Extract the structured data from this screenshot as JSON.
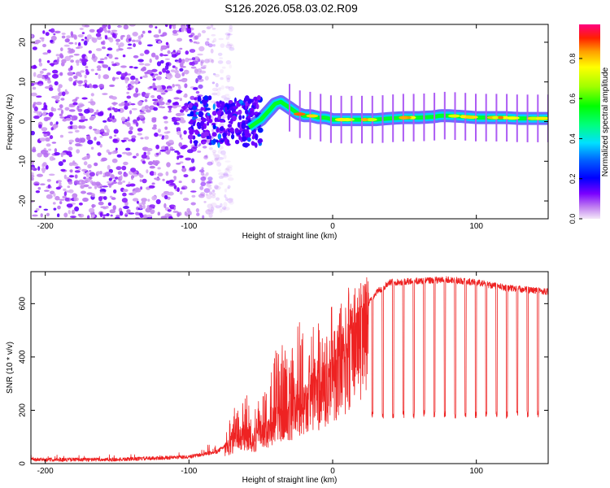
{
  "title": "S126.2026.058.03.02.R09",
  "colors": {
    "snr_line": "#ee2222",
    "frame": "#000000",
    "scatter_main": "#6a00ff"
  },
  "colorbar": {
    "label": "Normalized spectral amplitude",
    "ticks": [
      "0.0",
      "0.2",
      "0.4",
      "0.6",
      "0.8"
    ],
    "range": [
      0.0,
      0.97
    ]
  },
  "chart_data": [
    {
      "type": "heatmap",
      "title": "S126.2026.058.03.02.R09",
      "xlabel": "Height of straight line (km)",
      "ylabel": "Frequency (Hz)",
      "xlim": [
        -210,
        150
      ],
      "ylim": [
        -24.5,
        24.5
      ],
      "xticks": [
        -200,
        -100,
        0,
        100
      ],
      "xtick_labels": [
        "-200",
        "-100",
        "0",
        "100"
      ],
      "yticks": [
        -20,
        -10,
        0,
        10,
        20
      ],
      "ytick_labels": [
        "-20",
        "-10",
        "0",
        "10",
        "20"
      ],
      "noise_region": {
        "x_range": [
          -210,
          -85
        ],
        "freq_range": [
          -24.5,
          24.5
        ],
        "amplitude": 0.1
      },
      "transition_region": {
        "x_range": [
          -100,
          -50
        ],
        "freq_range": [
          -6,
          6
        ],
        "amplitude": 0.2
      },
      "tone_track": {
        "x": [
          -58,
          -50,
          -45,
          -40,
          -36,
          -32,
          -28,
          -24,
          -20,
          -15,
          -10,
          -5,
          0,
          10,
          20,
          30,
          40,
          50,
          60,
          70,
          75,
          80,
          90,
          100,
          110,
          120,
          130,
          140,
          150
        ],
        "freq": [
          -1.5,
          0.5,
          2.5,
          4.5,
          5.0,
          4.0,
          3.0,
          2.0,
          1.5,
          1.5,
          1.0,
          1.0,
          0.5,
          0.5,
          0.5,
          0.5,
          0.8,
          1.0,
          1.0,
          1.2,
          1.5,
          1.5,
          1.3,
          1.0,
          1.0,
          1.0,
          0.8,
          0.8,
          0.8
        ],
        "peak_amplitude": 0.9
      }
    },
    {
      "type": "line",
      "xlabel": "Height of straight line (km)",
      "ylabel": "SNR (10 * v/v)",
      "xlim": [
        -210,
        150
      ],
      "ylim": [
        0,
        720
      ],
      "xticks": [
        -200,
        -100,
        0,
        100
      ],
      "xtick_labels": [
        "-200",
        "-100",
        "0",
        "100"
      ],
      "yticks": [
        0,
        200,
        400,
        600
      ],
      "ytick_labels": [
        "0",
        "200",
        "400",
        "600"
      ],
      "series": [
        {
          "name": "SNR",
          "x": [
            -210,
            -150,
            -100,
            -90,
            -80,
            -70,
            -65,
            -60,
            -55,
            -50,
            -45,
            -40,
            -35,
            -30,
            -25,
            -20,
            -15,
            -10,
            -5,
            0,
            5,
            10,
            15,
            20,
            25,
            30,
            40,
            60,
            80,
            100,
            120,
            140,
            150
          ],
          "base": [
            15,
            15,
            25,
            35,
            45,
            90,
            130,
            120,
            100,
            130,
            150,
            180,
            200,
            200,
            220,
            250,
            280,
            300,
            330,
            350,
            400,
            450,
            520,
            560,
            600,
            640,
            680,
            685,
            690,
            680,
            660,
            650,
            645
          ],
          "spike_max": [
            30,
            35,
            40,
            60,
            100,
            180,
            280,
            260,
            210,
            250,
            300,
            420,
            460,
            400,
            550,
            520,
            500,
            540,
            560,
            620,
            650,
            660,
            680,
            690,
            700,
            700,
            700,
            700,
            705,
            700,
            690,
            670,
            660
          ],
          "periodic_dips": {
            "x_start": 22,
            "x_end": 148,
            "period": 7.2,
            "dip_floor": 170,
            "floor_range_x": [
              0,
              150
            ]
          }
        }
      ]
    }
  ]
}
